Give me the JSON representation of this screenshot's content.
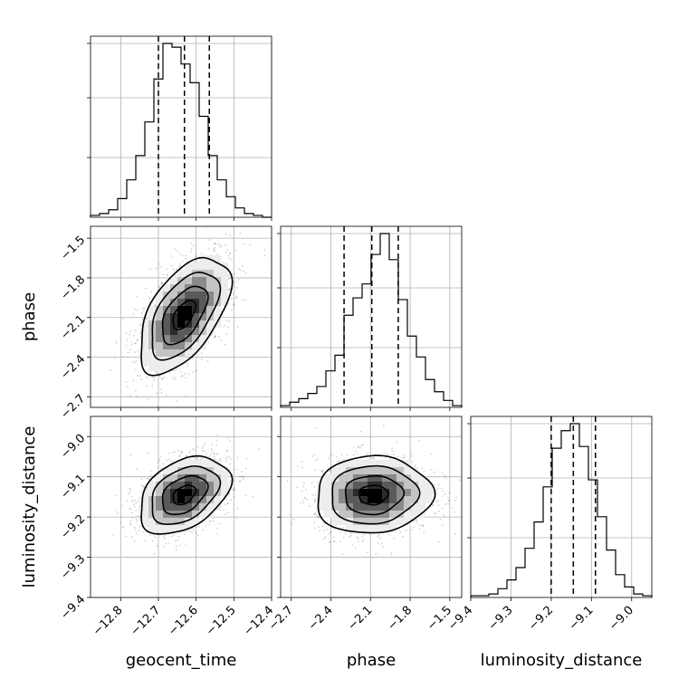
{
  "chart_data": {
    "type": "corner",
    "parameters": [
      {
        "name": "geocent_time",
        "label": "geocent_time",
        "range": [
          -12.88,
          -12.4
        ],
        "ticks": [
          -12.8,
          -12.7,
          -12.6,
          -12.5,
          -12.4
        ],
        "tick_labels": [
          "−12.8",
          "−12.7",
          "−12.6",
          "−12.5",
          "−12.4"
        ]
      },
      {
        "name": "phase",
        "label": "phase",
        "range": [
          -2.78,
          -1.41
        ],
        "ticks": [
          -2.7,
          -2.4,
          -2.1,
          -1.8,
          -1.5
        ],
        "tick_labels": [
          "−2.7",
          "−2.4",
          "−2.1",
          "−1.8",
          "−1.5"
        ]
      },
      {
        "name": "luminosity_distance",
        "label": "luminosity_distance",
        "range": [
          -9.4,
          -8.95
        ],
        "ticks": [
          -9.4,
          -9.3,
          -9.2,
          -9.1,
          -9.0
        ],
        "tick_labels": [
          "−9.4",
          "−9.3",
          "−9.2",
          "−9.1",
          "−9.0"
        ]
      }
    ],
    "marginals": [
      {
        "parameter": "geocent_time",
        "bins": 20,
        "bin_range": [
          -12.88,
          -12.4
        ],
        "counts": [
          1,
          2,
          4,
          10,
          20,
          33,
          51,
          74,
          93,
          91,
          82,
          72,
          54,
          33,
          20,
          11,
          5,
          2,
          1,
          0
        ],
        "quantiles": [
          -12.7,
          -12.631,
          -12.565
        ]
      },
      {
        "parameter": "phase",
        "bins": 20,
        "bin_range": [
          -2.78,
          -1.41
        ],
        "counts": [
          1,
          3,
          5,
          8,
          12,
          21,
          30,
          53,
          63,
          71,
          88,
          100,
          85,
          62,
          41,
          29,
          16,
          9,
          4,
          1
        ],
        "quantiles": [
          -2.3,
          -2.09,
          -1.89
        ]
      },
      {
        "parameter": "luminosity_distance",
        "bins": 20,
        "bin_range": [
          -9.4,
          -8.95
        ],
        "counts": [
          1,
          1,
          2,
          5,
          10,
          17,
          28,
          43,
          63,
          85,
          95,
          99,
          86,
          67,
          46,
          27,
          13,
          6,
          2,
          1
        ],
        "quantiles": [
          -9.2,
          -9.145,
          -9.09
        ]
      }
    ],
    "joint": [
      {
        "x": "geocent_time",
        "y": "phase",
        "mean": [
          -12.632,
          -2.08
        ],
        "std": [
          0.06,
          0.22
        ],
        "corr": 0.55
      },
      {
        "x": "geocent_time",
        "y": "luminosity_distance",
        "mean": [
          -12.632,
          -9.145
        ],
        "std": [
          0.06,
          0.048
        ],
        "corr": 0.38
      },
      {
        "x": "phase",
        "y": "luminosity_distance",
        "mean": [
          -2.08,
          -9.145
        ],
        "std": [
          0.22,
          0.048
        ],
        "corr": 0.05
      }
    ],
    "contour_levels": [
      0.5,
      1.0,
      1.5,
      2.0
    ],
    "grid": true,
    "xlabel": "",
    "ylabel": "",
    "title": ""
  }
}
